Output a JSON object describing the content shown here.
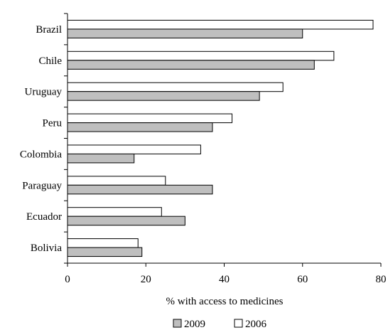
{
  "chart_data": {
    "type": "bar",
    "orientation": "horizontal",
    "title": "",
    "categories": [
      "Brazil",
      "Chile",
      "Uruguay",
      "Peru",
      "Colombia",
      "Paraguay",
      "Ecuador",
      "Bolivia"
    ],
    "series": [
      {
        "name": "2006",
        "values": [
          78,
          68,
          55,
          42,
          34,
          25,
          24,
          18
        ],
        "color": "#ffffff"
      },
      {
        "name": "2009",
        "values": [
          60,
          63,
          49,
          37,
          17,
          37,
          30,
          19
        ],
        "color": "#bfbfbf"
      }
    ],
    "xlabel": "% with access to medicines",
    "ylabel": "",
    "xlim": [
      0,
      80
    ],
    "xticks": [
      "0",
      "20",
      "40",
      "60",
      "80"
    ],
    "grid": false,
    "legend": {
      "placement": "bottom",
      "entries": [
        {
          "label": "2009",
          "color": "#bfbfbf"
        },
        {
          "label": "2006",
          "color": "#ffffff"
        }
      ]
    }
  }
}
